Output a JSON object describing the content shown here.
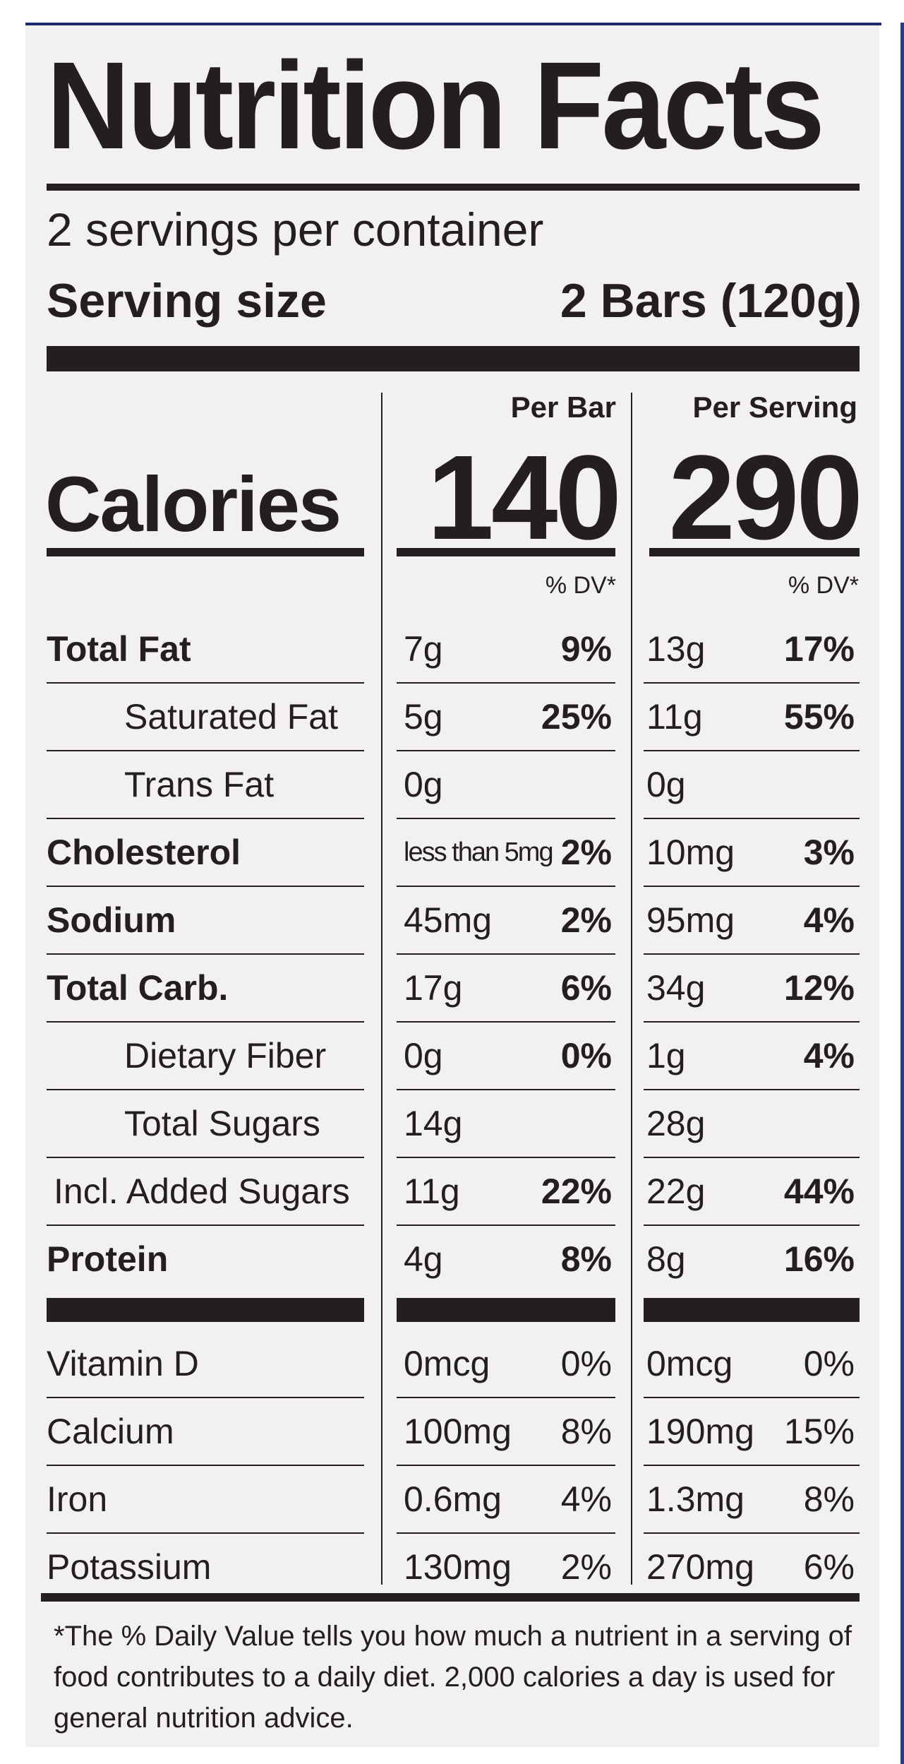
{
  "title": "Nutrition Facts",
  "servings_per_container": "2 servings per container",
  "serving_size": {
    "label": "Serving size",
    "value": "2 Bars (120g)"
  },
  "column_headers": {
    "per_bar": "Per Bar",
    "per_serving": "Per Serving"
  },
  "calories": {
    "label": "Calories",
    "per_bar": "140",
    "per_serving": "290"
  },
  "dv_header": "% DV*",
  "nutrients": [
    {
      "label": "Total Fat",
      "bold": true,
      "indent": false,
      "bar_amount": "7g",
      "bar_dv": "9%",
      "serving_amount": "13g",
      "serving_dv": "17%"
    },
    {
      "label": "Saturated Fat",
      "bold": false,
      "indent": true,
      "bar_amount": "5g",
      "bar_dv": "25%",
      "serving_amount": "11g",
      "serving_dv": "55%"
    },
    {
      "label": "Trans Fat",
      "bold": false,
      "indent": true,
      "bar_amount": "0g",
      "bar_dv": "",
      "serving_amount": "0g",
      "serving_dv": ""
    },
    {
      "label": "Cholesterol",
      "bold": true,
      "indent": false,
      "bar_amount": "less than 5mg",
      "bar_dv": "2%",
      "serving_amount": "10mg",
      "serving_dv": "3%"
    },
    {
      "label": "Sodium",
      "bold": true,
      "indent": false,
      "bar_amount": "45mg",
      "bar_dv": "2%",
      "serving_amount": "95mg",
      "serving_dv": "4%"
    },
    {
      "label": "Total Carb.",
      "bold": true,
      "indent": false,
      "bar_amount": "17g",
      "bar_dv": "6%",
      "serving_amount": "34g",
      "serving_dv": "12%"
    },
    {
      "label": "Dietary Fiber",
      "bold": false,
      "indent": true,
      "bar_amount": "0g",
      "bar_dv": "0%",
      "serving_amount": "1g",
      "serving_dv": "4%"
    },
    {
      "label": "Total Sugars",
      "bold": false,
      "indent": true,
      "bar_amount": "14g",
      "bar_dv": "",
      "serving_amount": "28g",
      "serving_dv": ""
    },
    {
      "label": "Incl. Added Sugars",
      "bold": false,
      "indent": false,
      "bar_amount": "11g",
      "bar_dv": "22%",
      "serving_amount": "22g",
      "serving_dv": "44%"
    },
    {
      "label": "Protein",
      "bold": true,
      "indent": false,
      "bar_amount": "4g",
      "bar_dv": "8%",
      "serving_amount": "8g",
      "serving_dv": "16%"
    }
  ],
  "vitamins": [
    {
      "label": "Vitamin D",
      "bar_amount": "0mcg",
      "bar_dv": "0%",
      "serving_amount": "0mcg",
      "serving_dv": "0%"
    },
    {
      "label": "Calcium",
      "bar_amount": "100mg",
      "bar_dv": "8%",
      "serving_amount": "190mg",
      "serving_dv": "15%"
    },
    {
      "label": "Iron",
      "bar_amount": "0.6mg",
      "bar_dv": "4%",
      "serving_amount": "1.3mg",
      "serving_dv": "8%"
    },
    {
      "label": "Potassium",
      "bar_amount": "130mg",
      "bar_dv": "2%",
      "serving_amount": "270mg",
      "serving_dv": "6%"
    }
  ],
  "footnote": "*The % Daily Value tells you how much a nutrient in a serving of food contributes to a daily diet. 2,000 calories a day is used for general nutrition advice.",
  "colors": {
    "ink": "#231f20",
    "panel": "#f2f1ef",
    "edge": "#2a3a8c"
  }
}
